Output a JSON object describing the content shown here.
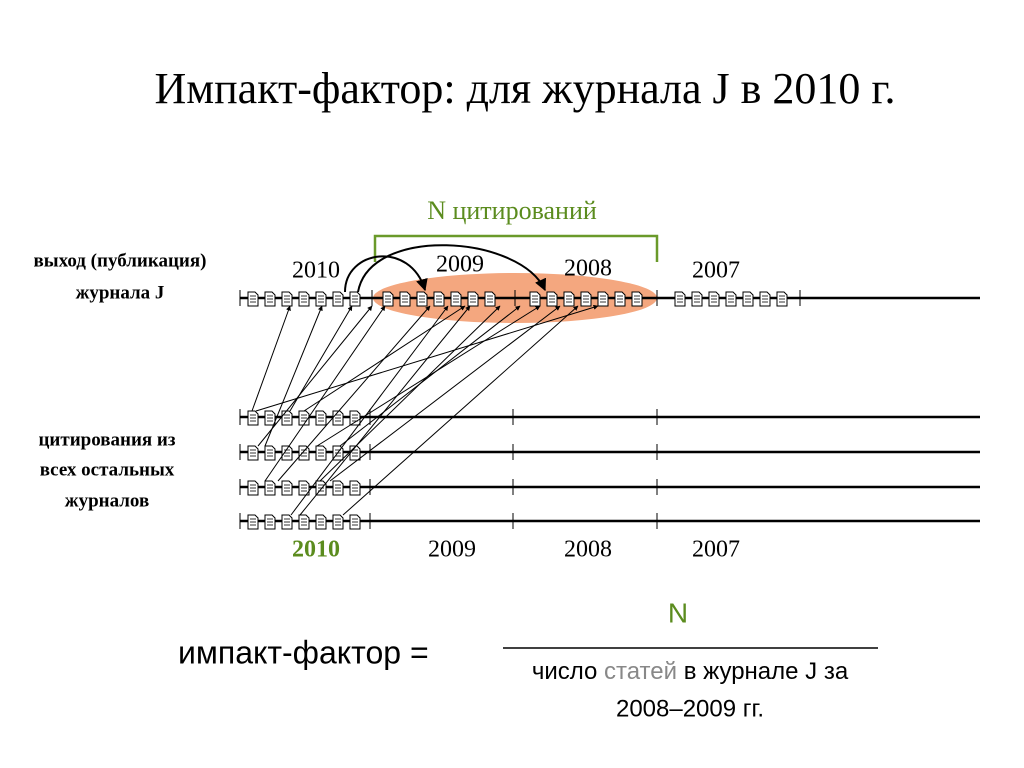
{
  "title": "Импакт-фактор: для журнала J в 2010 г.",
  "bracket_label": "N цитирований",
  "left_labels": {
    "publication": [
      "выход (публикация)",
      "журнала J"
    ],
    "citations": [
      "цитирования из",
      "всех остальных",
      "журналов"
    ]
  },
  "top_years": [
    "2010",
    "2009",
    "2008",
    "2007"
  ],
  "bottom_years": [
    "2010",
    "2009",
    "2008",
    "2007"
  ],
  "formula": {
    "lhs": "импакт-фактор =",
    "numerator": "N",
    "denominator": {
      "line1": [
        "число ",
        "статей",
        " в журнале J за"
      ],
      "line2": "2008–2009 гг."
    }
  }
}
